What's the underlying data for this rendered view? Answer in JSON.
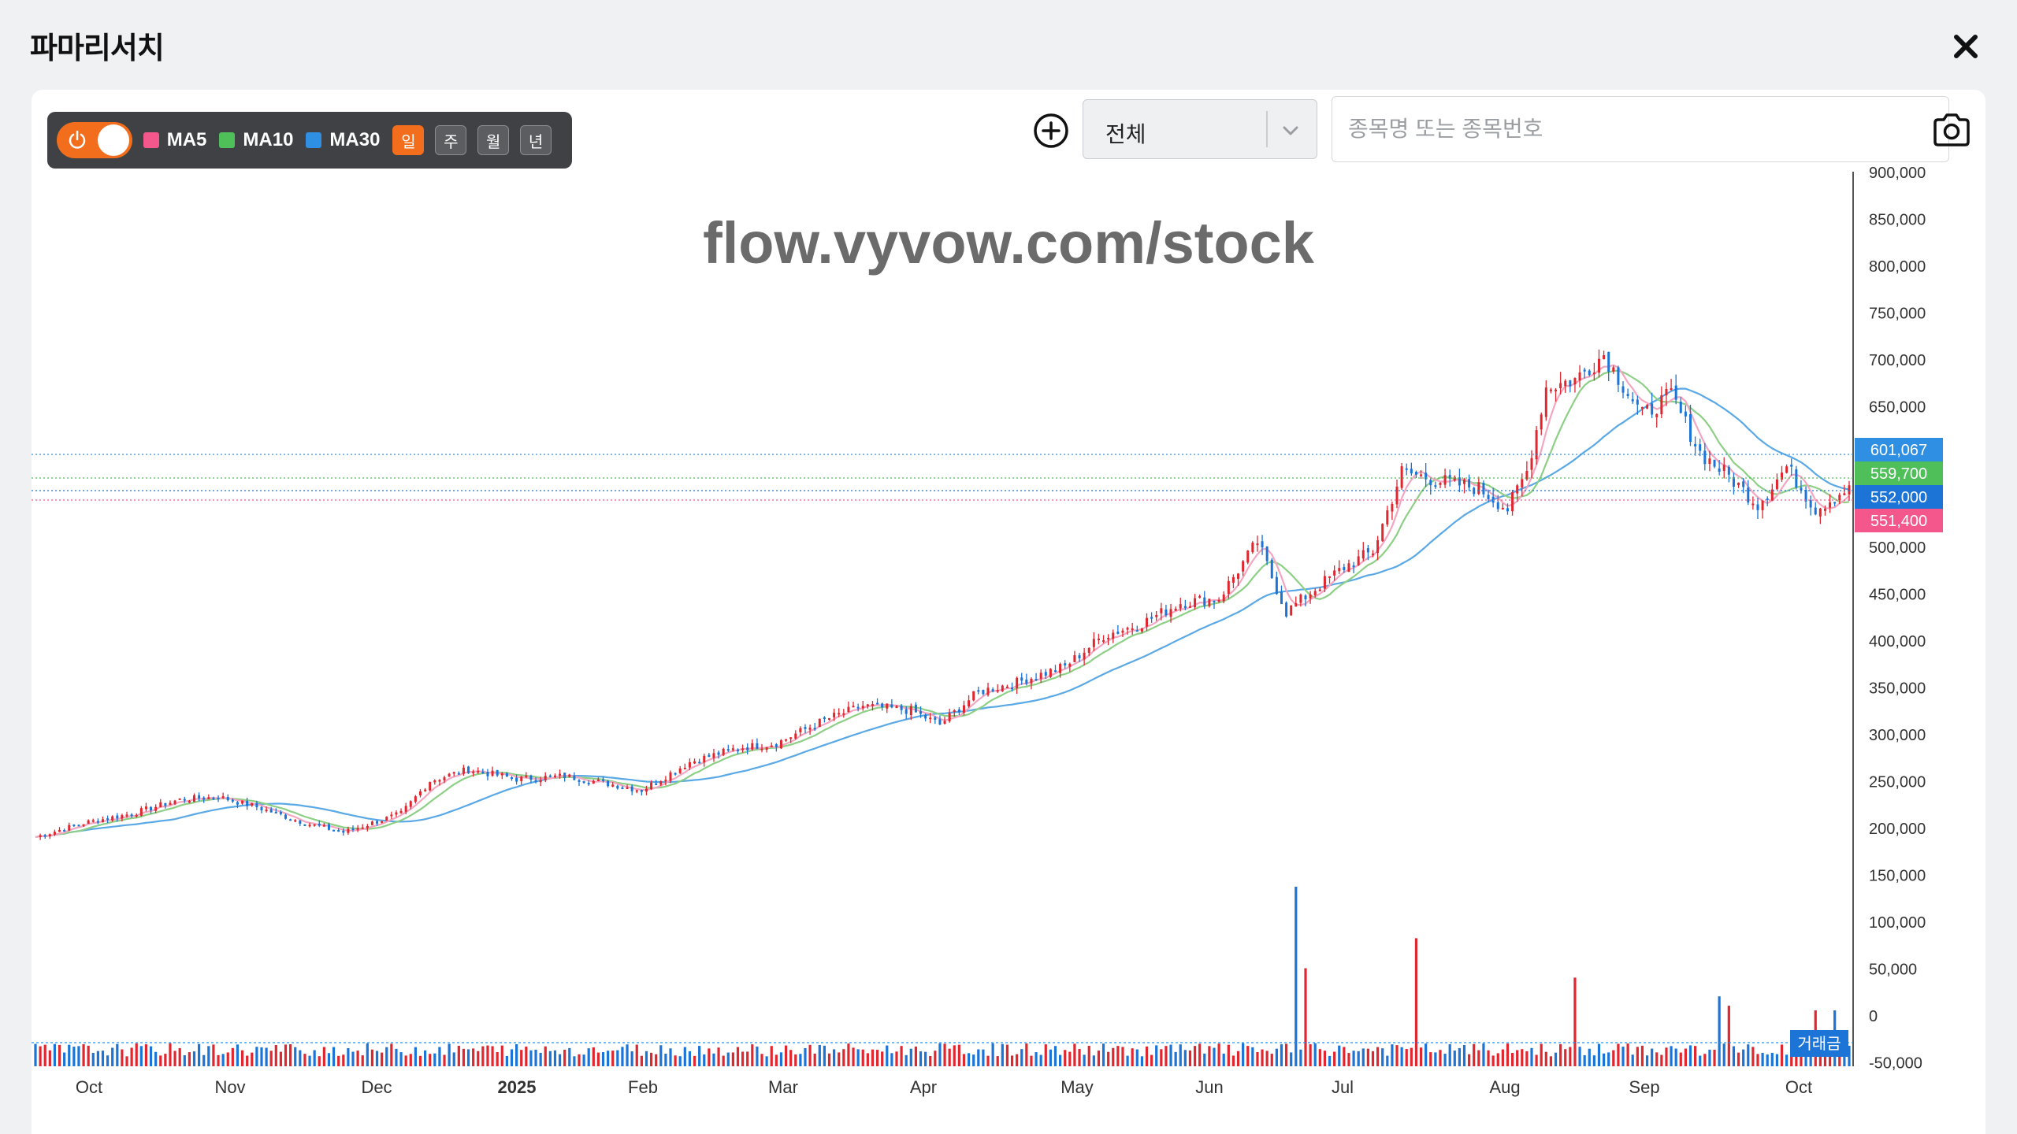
{
  "modal": {
    "title": "파마리서치",
    "close_icon": "close-icon"
  },
  "toolbar": {
    "toggle_icon": "power-icon",
    "toggle_state": "on",
    "ma_items": [
      {
        "label": "MA5",
        "color": "#f4578b"
      },
      {
        "label": "MA10",
        "color": "#4fbf5a"
      },
      {
        "label": "MA30",
        "color": "#2f8fe3"
      }
    ],
    "periods": [
      {
        "label": "일",
        "active": true
      },
      {
        "label": "주",
        "active": false
      },
      {
        "label": "월",
        "active": false
      },
      {
        "label": "년",
        "active": false
      }
    ],
    "add_icon": "plus-circle-icon",
    "market_select": {
      "value": "전체"
    },
    "search": {
      "placeholder": "종목명 또는 종목번호",
      "value": ""
    },
    "camera_icon": "camera-icon"
  },
  "chart_data": {
    "type": "candlestick",
    "watermark": "flow.vyvow.com/stock",
    "colors": {
      "up": "#e0262f",
      "down": "#1b74d6",
      "ma5": "#f4a6c1",
      "ma10": "#8ecf86",
      "ma30": "#5aa9e6"
    },
    "y_ticks": [
      "900,000",
      "850,000",
      "800,000",
      "750,000",
      "700,000",
      "650,000",
      "600,000",
      "550,000",
      "500,000",
      "450,000",
      "400,000",
      "350,000",
      "300,000",
      "250,000",
      "200,000",
      "150,000",
      "100,000",
      "50,000",
      "0",
      "-50,000"
    ],
    "x_ticks": [
      "Oct",
      "Nov",
      "Dec",
      "2025",
      "Feb",
      "Mar",
      "Apr",
      "May",
      "Jun",
      "Jul",
      "Aug",
      "Sep",
      "Oct"
    ],
    "price_labels": [
      {
        "value": "601,067",
        "color": "#2f8fe3"
      },
      {
        "value": "559,700",
        "color": "#4fbf5a"
      },
      {
        "value": "552,000",
        "color": "#1b74d6"
      },
      {
        "value": "551,400",
        "color": "#f4578b"
      }
    ],
    "volume_label": "거래금",
    "close_series": [
      [
        0,
        190000
      ],
      [
        10,
        205000
      ],
      [
        20,
        215000
      ],
      [
        30,
        230000
      ],
      [
        38,
        233000
      ],
      [
        46,
        222000
      ],
      [
        56,
        205000
      ],
      [
        64,
        195000
      ],
      [
        70,
        205000
      ],
      [
        76,
        215000
      ],
      [
        82,
        250000
      ],
      [
        90,
        262000
      ],
      [
        100,
        252000
      ],
      [
        110,
        255000
      ],
      [
        118,
        248000
      ],
      [
        126,
        240000
      ],
      [
        136,
        270000
      ],
      [
        146,
        285000
      ],
      [
        154,
        290000
      ],
      [
        164,
        315000
      ],
      [
        172,
        330000
      ],
      [
        182,
        325000
      ],
      [
        188,
        310000
      ],
      [
        196,
        345000
      ],
      [
        204,
        355000
      ],
      [
        214,
        372000
      ],
      [
        222,
        405000
      ],
      [
        230,
        418000
      ],
      [
        238,
        440000
      ],
      [
        246,
        445000
      ],
      [
        254,
        505000
      ],
      [
        260,
        430000
      ],
      [
        266,
        455000
      ],
      [
        272,
        478000
      ],
      [
        278,
        495000
      ],
      [
        284,
        580000
      ],
      [
        292,
        570000
      ],
      [
        300,
        562000
      ],
      [
        306,
        540000
      ],
      [
        310,
        580000
      ],
      [
        314,
        670000
      ],
      [
        320,
        678000
      ],
      [
        326,
        705000
      ],
      [
        334,
        640000
      ],
      [
        340,
        662000
      ],
      [
        346,
        600000
      ],
      [
        352,
        575000
      ],
      [
        358,
        545000
      ],
      [
        364,
        585000
      ],
      [
        370,
        540000
      ],
      [
        376,
        560000
      ]
    ],
    "volume_spikes": [
      {
        "t": 262,
        "value": 137000,
        "up": false
      },
      {
        "t": 264,
        "value": 50000,
        "up": true
      },
      {
        "t": 287,
        "value": 82000,
        "up": true
      },
      {
        "t": 320,
        "value": 40000,
        "up": true
      },
      {
        "t": 350,
        "value": 20000,
        "up": false
      },
      {
        "t": 352,
        "value": 10000,
        "up": true
      },
      {
        "t": 370,
        "value": 5000,
        "up": true
      },
      {
        "t": 374,
        "value": 5000,
        "up": false
      }
    ]
  }
}
